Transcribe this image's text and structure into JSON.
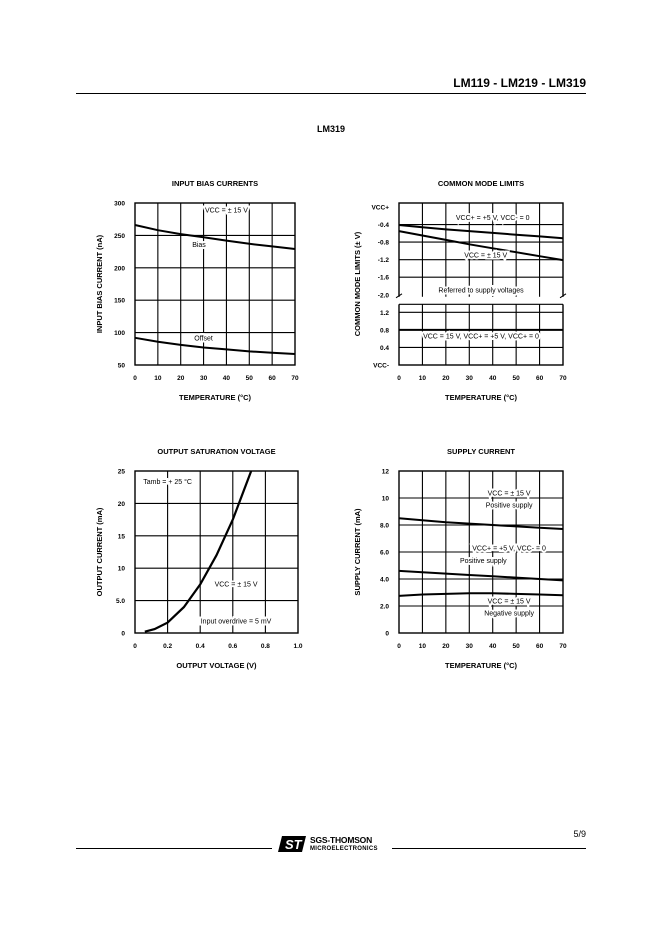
{
  "header": {
    "title": "LM119 - LM219 - LM319"
  },
  "subtitle": "LM319",
  "chart_data": [
    {
      "id": "bias",
      "type": "line",
      "title": "INPUT BIAS CURRENTS",
      "xlabel": "TEMPERATURE (°C)",
      "ylabel": "INPUT BIAS CURRENT (nA)",
      "xlim": [
        0,
        70
      ],
      "ylim": [
        50,
        300
      ],
      "x_ticks": [
        "0",
        "10",
        "20",
        "30",
        "40",
        "50",
        "60",
        "70"
      ],
      "y_ticks": [
        {
          "v": 50,
          "label": "50"
        },
        {
          "v": 100,
          "label": "100"
        },
        {
          "v": 150,
          "label": "150"
        },
        {
          "v": 200,
          "label": "200"
        },
        {
          "v": 250,
          "label": "250"
        },
        {
          "v": 300,
          "label": "300"
        }
      ],
      "grid": true,
      "series": [
        {
          "name": "Bias",
          "x": [
            0,
            10,
            20,
            30,
            40,
            50,
            60,
            70
          ],
          "y": [
            266,
            258,
            252,
            247,
            242,
            237,
            233,
            229
          ]
        },
        {
          "name": "Offset",
          "x": [
            0,
            10,
            20,
            30,
            40,
            50,
            60,
            70
          ],
          "y": [
            92,
            86,
            81,
            77,
            74,
            71,
            69,
            67
          ]
        }
      ],
      "annotations": [
        {
          "text": "VCC = ± 15 V",
          "x": 40,
          "y": 285
        },
        {
          "text": "Bias",
          "x": 28,
          "y": 232
        },
        {
          "text": "Offset",
          "x": 30,
          "y": 88
        }
      ]
    },
    {
      "id": "cm",
      "type": "line",
      "title": "COMMON MODE LIMITS",
      "xlabel": "TEMPERATURE (°C)",
      "ylabel": "COMMON MODE LIMITS (± V)",
      "xlim": [
        0,
        70
      ],
      "x_ticks": [
        "0",
        "10",
        "20",
        "30",
        "40",
        "50",
        "60",
        "70"
      ],
      "y_ticks": [
        "VCC+",
        "-0.4",
        "-0.8",
        "-1.2",
        "-1.6",
        "-2.0",
        "1.2",
        "0.8",
        "0.4",
        "VCC-"
      ],
      "grid": true,
      "series": [
        {
          "name": "VCC+ = +5 V, VCC- = 0",
          "x": [
            0,
            10,
            20,
            30,
            40,
            50,
            60,
            70
          ],
          "y": [
            -0.41,
            -0.46,
            -0.51,
            -0.55,
            -0.59,
            -0.63,
            -0.67,
            -0.71
          ]
        },
        {
          "name": "VCC = ± 15 V",
          "x": [
            0,
            10,
            20,
            30,
            40,
            50,
            60,
            70
          ],
          "y": [
            -0.55,
            -0.65,
            -0.75,
            -0.85,
            -0.94,
            -1.03,
            -1.12,
            -1.21
          ]
        },
        {
          "name": "VCC = 15 V, VCC+ = +5 V, VCC+ = 0",
          "x": [
            0,
            70
          ],
          "y": [
            0.8,
            0.8
          ]
        }
      ],
      "annotations": [
        {
          "text": "VCC+ = +5 V, VCC- = 0",
          "x": 40,
          "y": -0.3
        },
        {
          "text": "VCC = ± 15 V",
          "x": 37,
          "y": -1.15
        },
        {
          "text": "Referred to supply voltages",
          "x": 35,
          "y": -1.95
        },
        {
          "text": "VCC = 15 V, VCC+ = +5 V, VCC+ = 0",
          "x": 35,
          "y": 0.6
        }
      ]
    },
    {
      "id": "sat",
      "type": "line",
      "title": "OUTPUT SATURATION VOLTAGE",
      "xlabel": "OUTPUT VOLTAGE (V)",
      "ylabel": "OUTPUT CURRENT (mA)",
      "xlim": [
        0,
        1.0
      ],
      "ylim": [
        0,
        25
      ],
      "x_ticks": [
        {
          "v": 0,
          "label": "0"
        },
        {
          "v": 0.2,
          "label": "0.2"
        },
        {
          "v": 0.4,
          "label": "0.4"
        },
        {
          "v": 0.6,
          "label": "0.6"
        },
        {
          "v": 0.8,
          "label": "0.8"
        },
        {
          "v": 1.0,
          "label": "1.0"
        }
      ],
      "y_ticks": [
        {
          "v": 0,
          "label": "0"
        },
        {
          "v": 5,
          "label": "5.0"
        },
        {
          "v": 10,
          "label": "10"
        },
        {
          "v": 15,
          "label": "15"
        },
        {
          "v": 20,
          "label": "20"
        },
        {
          "v": 25,
          "label": "25"
        }
      ],
      "grid": true,
      "series": [
        {
          "name": "VCC = ± 15 V",
          "x": [
            0.06,
            0.12,
            0.2,
            0.3,
            0.4,
            0.5,
            0.6,
            0.66,
            0.72
          ],
          "y": [
            0.2,
            0.6,
            1.6,
            4,
            7.5,
            12,
            17.5,
            21.5,
            25.5
          ]
        }
      ],
      "annotations": [
        {
          "text": "Tamb = + 25 °C",
          "x": 0.2,
          "y": 23
        },
        {
          "text": "VCC = ± 15 V",
          "x": 0.62,
          "y": 7.2
        },
        {
          "text": "Input overdrive = 5 mV",
          "x": 0.62,
          "y": 1.5
        }
      ]
    },
    {
      "id": "supply",
      "type": "line",
      "title": "SUPPLY CURRENT",
      "xlabel": "TEMPERATURE (°C)",
      "ylabel": "SUPPLY CURRENT (mA)",
      "xlim": [
        0,
        70
      ],
      "ylim": [
        0,
        12
      ],
      "x_ticks": [
        "0",
        "10",
        "20",
        "30",
        "40",
        "50",
        "60",
        "70"
      ],
      "y_ticks": [
        {
          "v": 0,
          "label": "0"
        },
        {
          "v": 2,
          "label": "2.0"
        },
        {
          "v": 4,
          "label": "4.0"
        },
        {
          "v": 6,
          "label": "6.0"
        },
        {
          "v": 8,
          "label": "8.0"
        },
        {
          "v": 10,
          "label": "10"
        },
        {
          "v": 12,
          "label": "12"
        }
      ],
      "grid": true,
      "series": [
        {
          "name": "VCC = ± 15 V Positive supply",
          "x": [
            0,
            10,
            20,
            30,
            40,
            50,
            60,
            70
          ],
          "y": [
            8.5,
            8.35,
            8.2,
            8.1,
            8.0,
            7.9,
            7.8,
            7.7
          ]
        },
        {
          "name": "VCC+ = +5 V, VCC- = 0 Positive supply",
          "x": [
            0,
            10,
            20,
            30,
            40,
            50,
            60,
            70
          ],
          "y": [
            4.6,
            4.5,
            4.4,
            4.3,
            4.2,
            4.1,
            4.0,
            3.9
          ]
        },
        {
          "name": "VCC = ± 15 V Negative supply",
          "x": [
            0,
            10,
            20,
            30,
            40,
            50,
            60,
            70
          ],
          "y": [
            2.75,
            2.85,
            2.9,
            2.95,
            2.95,
            2.9,
            2.85,
            2.8
          ]
        }
      ],
      "annotations": [
        {
          "text": "VCC = ± 15 V",
          "x": 47,
          "y": 10.2
        },
        {
          "text": "Positive supply",
          "x": 47,
          "y": 9.3
        },
        {
          "text": "VCC+ = +5 V, VCC- = 0",
          "x": 47,
          "y": 6.1
        },
        {
          "text": "Positive supply",
          "x": 36,
          "y": 5.2
        },
        {
          "text": "VCC = ± 15 V",
          "x": 47,
          "y": 2.2
        },
        {
          "text": "Negative supply",
          "x": 47,
          "y": 1.3
        }
      ]
    }
  ],
  "footer": {
    "page": "5/9",
    "brand_line1": "SGS-THOMSON",
    "brand_line2": "MICROELECTRONICS",
    "logo_icon": "st-logo-icon"
  }
}
